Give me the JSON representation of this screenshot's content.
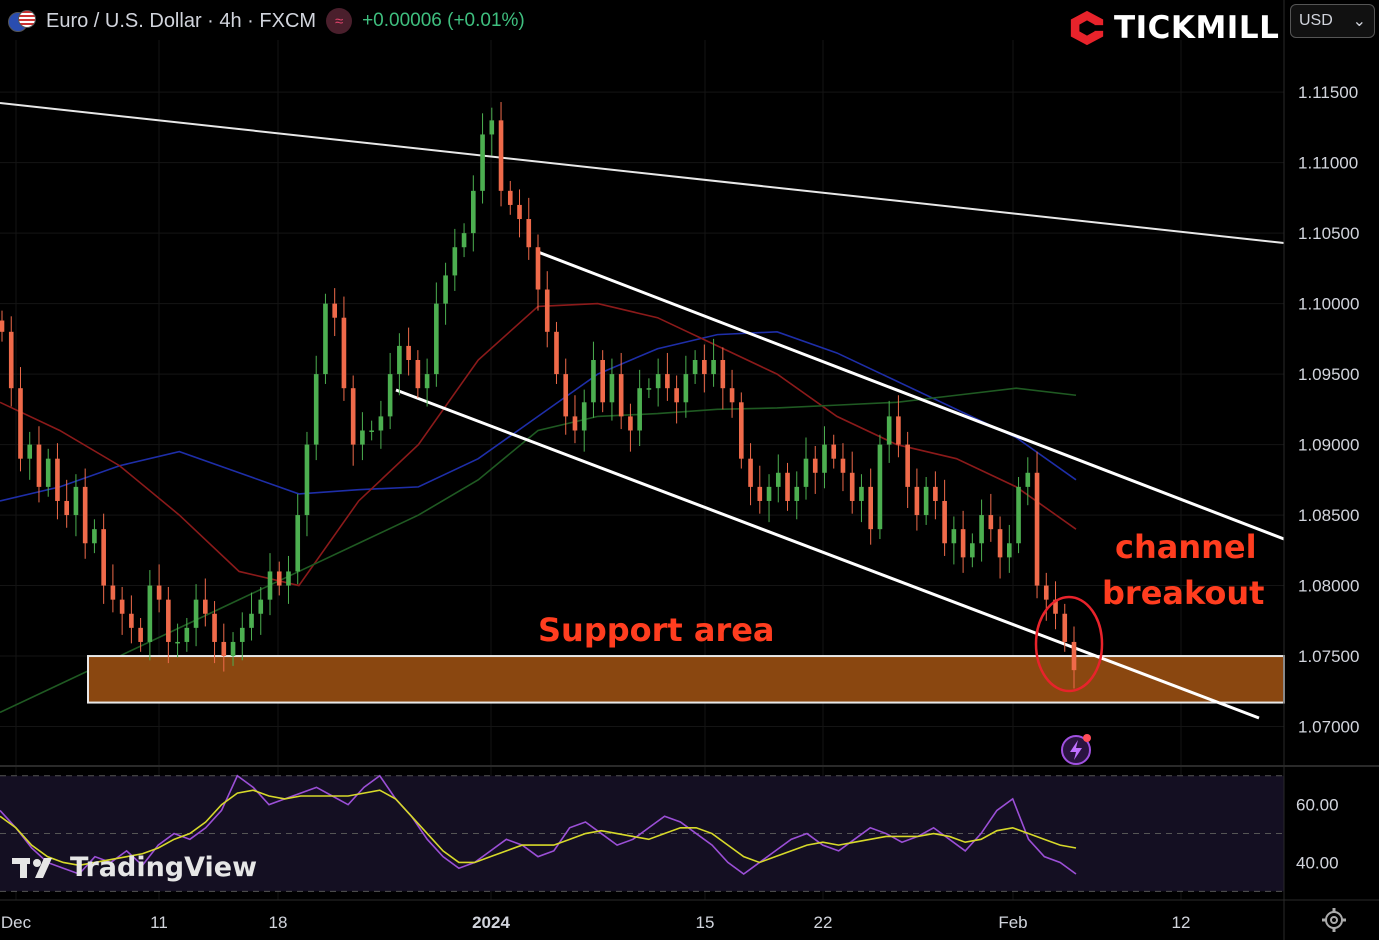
{
  "header": {
    "symbol_title": "Euro / U.S. Dollar · 4h · FXCM",
    "indicator_glyph": "≈",
    "change": "+0.00006 (+0.01%)"
  },
  "brand": {
    "name": "TICKMILL",
    "color": "#e8232b"
  },
  "currency_selector": {
    "value": "USD",
    "caret": "⌄"
  },
  "watermark": {
    "text": "TradingView"
  },
  "annotations": {
    "support": "Support area",
    "breakout_line1": "channel",
    "breakout_line2": "breakout",
    "color": "#ff3d1f"
  },
  "colors": {
    "up": "#4caf50",
    "down": "#ef6a4a",
    "ma_blue": "#1e2ea8",
    "ma_red": "#8b1a1a",
    "ma_green": "#1f5a22",
    "support_fill": "#8a4710",
    "rsi_line": "#9b4fd6",
    "rsi_ma": "#d7d92a"
  },
  "chart_data": [
    {
      "type": "candlestick",
      "title": "Euro / U.S. Dollar · 4h · FXCM",
      "y_axis": {
        "ticks": [
          "1.11500",
          "1.11000",
          "1.10500",
          "1.10000",
          "1.09500",
          "1.09000",
          "1.08500",
          "1.08000",
          "1.07500",
          "1.07000"
        ],
        "ylim": [
          1.0672,
          1.1187
        ]
      },
      "x_axis": {
        "ticks": [
          "Dec",
          "11",
          "18",
          "2024",
          "15",
          "22",
          "Feb",
          "12"
        ]
      },
      "series": [
        {
          "name": "price",
          "values": [
            1.098,
            1.094,
            1.089,
            1.09,
            1.087,
            1.089,
            1.086,
            1.085,
            1.087,
            1.083,
            1.084,
            1.08,
            1.079,
            1.078,
            1.077,
            1.076,
            1.08,
            1.079,
            1.076,
            1.076,
            1.077,
            1.079,
            1.078,
            1.076,
            1.075,
            1.076,
            1.077,
            1.078,
            1.079,
            1.081,
            1.08,
            1.081,
            1.085,
            1.09,
            1.095,
            1.1,
            1.099,
            1.094,
            1.09,
            1.091,
            1.091,
            1.092,
            1.095,
            1.097,
            1.096,
            1.094,
            1.095,
            1.1,
            1.102,
            1.104,
            1.105,
            1.108,
            1.112,
            1.113,
            1.108,
            1.107,
            1.106,
            1.104,
            1.101,
            1.098,
            1.095,
            1.092,
            1.091,
            1.093,
            1.096,
            1.093,
            1.095,
            1.092,
            1.091,
            1.094,
            1.094,
            1.095,
            1.094,
            1.093,
            1.095,
            1.096,
            1.095,
            1.096,
            1.094,
            1.093,
            1.089,
            1.087,
            1.086,
            1.087,
            1.088,
            1.086,
            1.087,
            1.089,
            1.088,
            1.09,
            1.089,
            1.088,
            1.086,
            1.087,
            1.084,
            1.09,
            1.092,
            1.09,
            1.087,
            1.085,
            1.087,
            1.086,
            1.083,
            1.084,
            1.082,
            1.083,
            1.085,
            1.084,
            1.082,
            1.083,
            1.087,
            1.088,
            1.08,
            1.079,
            1.078,
            1.076,
            1.074
          ]
        }
      ],
      "moving_averages": [
        {
          "color_key": "ma_blue",
          "values": [
            1.086,
            1.087,
            1.0885,
            1.0895,
            1.088,
            1.0865,
            1.0868,
            1.087,
            1.089,
            1.092,
            1.095,
            1.0968,
            1.0978,
            1.098,
            1.0965,
            1.0945,
            1.0925,
            1.0905,
            1.0875
          ]
        },
        {
          "color_key": "ma_red",
          "values": [
            1.093,
            1.091,
            1.0885,
            1.085,
            1.081,
            1.08,
            1.086,
            1.09,
            1.096,
            1.0998,
            1.1,
            1.099,
            1.097,
            1.095,
            1.092,
            1.09,
            1.089,
            1.087,
            1.084
          ]
        },
        {
          "color_key": "ma_green",
          "values": [
            1.071,
            1.073,
            1.075,
            1.077,
            1.079,
            1.081,
            1.083,
            1.085,
            1.0875,
            1.091,
            1.092,
            1.0922,
            1.0925,
            1.0926,
            1.0928,
            1.093,
            1.0935,
            1.094,
            1.0935
          ]
        }
      ],
      "support_zone": [
        1.0717,
        1.075
      ]
    },
    {
      "type": "line",
      "title": "",
      "y_axis": {
        "ticks": [
          "60.00",
          "40.00"
        ],
        "ylim": [
          27,
          72
        ]
      },
      "series": [
        {
          "name": "rsi",
          "values": [
            58,
            52,
            45,
            40,
            38,
            36,
            42,
            40,
            44,
            39,
            46,
            50,
            48,
            52,
            58,
            70,
            66,
            60,
            62,
            64,
            66,
            63,
            60,
            66,
            70,
            62,
            56,
            48,
            42,
            38,
            40,
            44,
            48,
            46,
            42,
            44,
            52,
            54,
            50,
            46,
            48,
            52,
            56,
            54,
            50,
            46,
            40,
            36,
            40,
            44,
            48,
            50,
            46,
            44,
            48,
            52,
            50,
            47,
            49,
            52,
            48,
            44,
            50,
            58,
            62,
            48,
            42,
            40,
            36
          ]
        },
        {
          "name": "rsi_ma",
          "values": [
            56,
            52,
            46,
            42,
            40,
            39,
            40,
            41,
            42,
            43,
            45,
            48,
            50,
            54,
            60,
            64,
            65,
            63,
            62,
            63,
            63,
            63,
            63,
            64,
            65,
            62,
            56,
            50,
            44,
            40,
            40,
            42,
            44,
            46,
            46,
            46,
            48,
            50,
            51,
            50,
            49,
            48,
            50,
            52,
            52,
            50,
            46,
            42,
            40,
            42,
            44,
            46,
            47,
            46,
            47,
            48,
            49,
            49,
            49,
            50,
            49,
            47,
            48,
            51,
            52,
            50,
            48,
            46,
            45
          ]
        }
      ]
    }
  ]
}
